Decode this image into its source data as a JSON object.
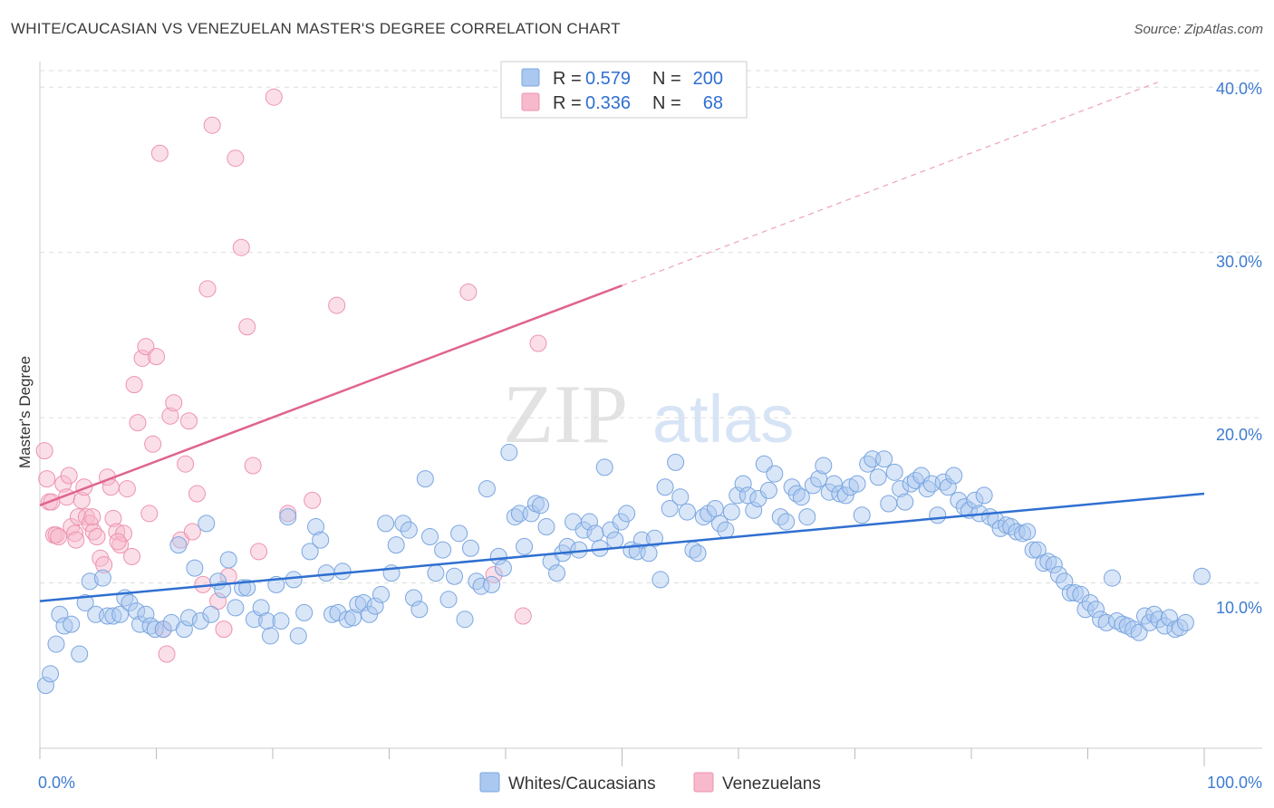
{
  "header": {
    "title": "WHITE/CAUCASIAN VS VENEZUELAN MASTER'S DEGREE CORRELATION CHART",
    "source": "Source: ZipAtlas.com"
  },
  "watermark": {
    "zip": "ZIP",
    "atlas": "atlas"
  },
  "legend": {
    "rows": [
      {
        "r_label": "R =",
        "r_value": "0.579",
        "n_label": "N =",
        "n_value": "200",
        "color": "#aac8f0"
      },
      {
        "r_label": "R =",
        "r_value": "0.336",
        "n_label": "N =",
        "n_value": "68",
        "color": "#f7b9cc"
      }
    ]
  },
  "bottom_legend": [
    "Whites/Caucasians",
    "Venezuelans"
  ],
  "colors": {
    "blue_fill": "#aac8f0",
    "blue_stroke": "#7aa6e0",
    "blue_line": "#2f6fd1",
    "pink_fill": "#f7b9cc",
    "pink_stroke": "#ee93ae",
    "pink_line": "#e0648e",
    "tick_text": "#3d7bd0",
    "grid": "#dddddd"
  },
  "chart_data": {
    "type": "scatter",
    "title": "WHITE/CAUCASIAN VS VENEZUELAN MASTER'S DEGREE CORRELATION CHART",
    "xlabel": "",
    "ylabel": "Master's Degree",
    "xlim": [
      0,
      100
    ],
    "ylim": [
      0,
      41
    ],
    "x_tick_labels": [
      "0.0%",
      "100.0%"
    ],
    "y_ticks": [
      10,
      20,
      30,
      40
    ],
    "y_tick_labels": [
      "10.0%",
      "20.0%",
      "30.0%",
      "40.0%"
    ],
    "grid": true,
    "series": [
      {
        "name": "Whites/Caucasians",
        "R": 0.579,
        "N": 200,
        "trend": {
          "x": [
            0,
            100
          ],
          "y": [
            8.9,
            15.4
          ]
        },
        "points": [
          [
            0.5,
            3.8
          ],
          [
            0.9,
            4.5
          ],
          [
            1.4,
            6.3
          ],
          [
            1.7,
            8.1
          ],
          [
            2.1,
            7.4
          ],
          [
            2.7,
            7.5
          ],
          [
            3.4,
            5.7
          ],
          [
            3.9,
            8.8
          ],
          [
            4.3,
            10.1
          ],
          [
            4.8,
            8.1
          ],
          [
            5.4,
            10.3
          ],
          [
            5.8,
            8.0
          ],
          [
            6.3,
            8.0
          ],
          [
            6.9,
            8.1
          ],
          [
            7.3,
            9.1
          ],
          [
            7.7,
            8.8
          ],
          [
            8.3,
            8.3
          ],
          [
            8.6,
            7.5
          ],
          [
            9.1,
            8.1
          ],
          [
            9.5,
            7.4
          ],
          [
            9.9,
            7.2
          ],
          [
            10.6,
            7.2
          ],
          [
            11.3,
            7.6
          ],
          [
            11.9,
            12.3
          ],
          [
            12.4,
            7.2
          ],
          [
            12.8,
            7.9
          ],
          [
            13.3,
            10.9
          ],
          [
            13.8,
            7.7
          ],
          [
            14.3,
            13.6
          ],
          [
            14.7,
            8.1
          ],
          [
            15.3,
            10.1
          ],
          [
            15.7,
            9.6
          ],
          [
            16.2,
            11.4
          ],
          [
            16.8,
            8.5
          ],
          [
            17.4,
            9.7
          ],
          [
            17.8,
            9.7
          ],
          [
            18.4,
            7.8
          ],
          [
            19.0,
            8.5
          ],
          [
            19.5,
            7.7
          ],
          [
            19.8,
            6.8
          ],
          [
            20.3,
            9.9
          ],
          [
            20.7,
            7.7
          ],
          [
            21.3,
            14.0
          ],
          [
            21.8,
            10.2
          ],
          [
            22.2,
            6.8
          ],
          [
            22.7,
            8.2
          ],
          [
            23.2,
            11.9
          ],
          [
            23.7,
            13.4
          ],
          [
            24.1,
            12.6
          ],
          [
            24.6,
            10.6
          ],
          [
            25.1,
            8.1
          ],
          [
            25.6,
            8.2
          ],
          [
            26.0,
            10.7
          ],
          [
            26.4,
            7.8
          ],
          [
            26.9,
            7.9
          ],
          [
            27.3,
            8.7
          ],
          [
            27.8,
            8.8
          ],
          [
            28.3,
            8.1
          ],
          [
            28.8,
            8.6
          ],
          [
            29.3,
            9.3
          ],
          [
            29.7,
            13.6
          ],
          [
            30.2,
            10.6
          ],
          [
            30.6,
            12.3
          ],
          [
            31.2,
            13.6
          ],
          [
            31.7,
            13.2
          ],
          [
            32.1,
            9.1
          ],
          [
            32.6,
            8.4
          ],
          [
            33.1,
            16.3
          ],
          [
            33.5,
            12.8
          ],
          [
            34.0,
            10.6
          ],
          [
            34.6,
            12.0
          ],
          [
            35.1,
            9.0
          ],
          [
            35.6,
            10.4
          ],
          [
            36.0,
            13.0
          ],
          [
            36.5,
            7.8
          ],
          [
            37.0,
            12.1
          ],
          [
            37.5,
            10.1
          ],
          [
            37.9,
            9.8
          ],
          [
            38.4,
            15.7
          ],
          [
            38.8,
            9.9
          ],
          [
            39.4,
            11.6
          ],
          [
            39.8,
            10.9
          ],
          [
            40.3,
            17.9
          ],
          [
            40.8,
            14.0
          ],
          [
            41.2,
            14.2
          ],
          [
            41.6,
            12.2
          ],
          [
            42.2,
            14.2
          ],
          [
            42.6,
            14.8
          ],
          [
            43.0,
            14.7
          ],
          [
            43.5,
            13.4
          ],
          [
            43.9,
            11.3
          ],
          [
            44.4,
            10.6
          ],
          [
            44.9,
            11.8
          ],
          [
            45.3,
            12.2
          ],
          [
            45.8,
            13.7
          ],
          [
            46.3,
            12.0
          ],
          [
            46.7,
            13.2
          ],
          [
            47.2,
            13.7
          ],
          [
            47.7,
            13.0
          ],
          [
            48.1,
            12.1
          ],
          [
            48.5,
            17.0
          ],
          [
            49.0,
            13.2
          ],
          [
            49.4,
            12.6
          ],
          [
            49.9,
            13.7
          ],
          [
            50.4,
            14.2
          ],
          [
            50.8,
            12.0
          ],
          [
            51.3,
            11.9
          ],
          [
            51.7,
            12.6
          ],
          [
            52.3,
            11.8
          ],
          [
            52.8,
            12.7
          ],
          [
            53.3,
            10.2
          ],
          [
            53.7,
            15.8
          ],
          [
            54.1,
            14.5
          ],
          [
            54.6,
            17.3
          ],
          [
            55.0,
            15.2
          ],
          [
            55.6,
            14.3
          ],
          [
            56.1,
            12.0
          ],
          [
            56.5,
            11.8
          ],
          [
            57.0,
            14.0
          ],
          [
            57.4,
            14.2
          ],
          [
            58.0,
            14.5
          ],
          [
            58.4,
            13.6
          ],
          [
            58.9,
            13.2
          ],
          [
            59.4,
            14.3
          ],
          [
            59.9,
            15.3
          ],
          [
            60.4,
            16.0
          ],
          [
            60.8,
            15.3
          ],
          [
            61.3,
            14.4
          ],
          [
            61.7,
            15.1
          ],
          [
            62.2,
            17.2
          ],
          [
            62.6,
            15.6
          ],
          [
            63.1,
            16.6
          ],
          [
            63.6,
            14.0
          ],
          [
            64.1,
            13.7
          ],
          [
            64.6,
            15.8
          ],
          [
            65.0,
            15.4
          ],
          [
            65.4,
            15.2
          ],
          [
            65.9,
            14.0
          ],
          [
            66.4,
            15.9
          ],
          [
            66.9,
            16.3
          ],
          [
            67.3,
            17.1
          ],
          [
            67.8,
            15.5
          ],
          [
            68.2,
            16.0
          ],
          [
            68.7,
            15.4
          ],
          [
            69.2,
            15.3
          ],
          [
            69.6,
            15.8
          ],
          [
            70.2,
            16.0
          ],
          [
            70.6,
            14.1
          ],
          [
            71.1,
            17.2
          ],
          [
            71.5,
            17.5
          ],
          [
            72.0,
            16.4
          ],
          [
            72.5,
            17.5
          ],
          [
            72.9,
            14.8
          ],
          [
            73.4,
            16.7
          ],
          [
            73.9,
            15.7
          ],
          [
            74.3,
            14.9
          ],
          [
            74.8,
            16.0
          ],
          [
            75.2,
            16.2
          ],
          [
            75.7,
            16.5
          ],
          [
            76.2,
            15.7
          ],
          [
            76.6,
            16.0
          ],
          [
            77.1,
            14.1
          ],
          [
            77.6,
            16.1
          ],
          [
            78.0,
            15.8
          ],
          [
            78.5,
            16.5
          ],
          [
            78.9,
            15.0
          ],
          [
            79.4,
            14.6
          ],
          [
            79.8,
            14.4
          ],
          [
            80.3,
            15.0
          ],
          [
            80.7,
            14.2
          ],
          [
            81.1,
            15.3
          ],
          [
            81.6,
            14.0
          ],
          [
            82.1,
            13.8
          ],
          [
            82.5,
            13.3
          ],
          [
            83.0,
            13.5
          ],
          [
            83.4,
            13.4
          ],
          [
            83.9,
            13.1
          ],
          [
            84.4,
            13.0
          ],
          [
            84.8,
            13.1
          ],
          [
            85.3,
            12.0
          ],
          [
            85.7,
            12.0
          ],
          [
            86.2,
            11.2
          ],
          [
            86.6,
            11.3
          ],
          [
            87.1,
            11.1
          ],
          [
            87.5,
            10.5
          ],
          [
            88.0,
            10.1
          ],
          [
            88.5,
            9.4
          ],
          [
            88.9,
            9.4
          ],
          [
            89.4,
            9.3
          ],
          [
            89.8,
            8.4
          ],
          [
            90.2,
            8.8
          ],
          [
            90.7,
            8.4
          ],
          [
            91.1,
            7.8
          ],
          [
            91.6,
            7.6
          ],
          [
            92.1,
            10.3
          ],
          [
            92.5,
            7.7
          ],
          [
            93.0,
            7.5
          ],
          [
            93.4,
            7.4
          ],
          [
            93.9,
            7.2
          ],
          [
            94.4,
            7.0
          ],
          [
            94.9,
            8.0
          ],
          [
            95.3,
            7.6
          ],
          [
            95.7,
            8.1
          ],
          [
            96.1,
            7.8
          ],
          [
            96.6,
            7.4
          ],
          [
            97.0,
            7.9
          ],
          [
            97.5,
            7.2
          ],
          [
            97.9,
            7.3
          ],
          [
            98.4,
            7.6
          ],
          [
            99.8,
            10.4
          ]
        ]
      },
      {
        "name": "Venezuelans",
        "R": 0.336,
        "N": 68,
        "trend": {
          "x": [
            0,
            50
          ],
          "y": [
            14.7,
            28.0
          ]
        },
        "trend_dashed_extension": {
          "x": [
            50,
            96
          ],
          "y": [
            28.0,
            40.3
          ]
        },
        "points": [
          [
            0.4,
            18.0
          ],
          [
            0.6,
            16.3
          ],
          [
            0.8,
            14.9
          ],
          [
            1.0,
            14.9
          ],
          [
            1.2,
            12.9
          ],
          [
            1.4,
            12.9
          ],
          [
            1.6,
            12.8
          ],
          [
            2.0,
            16.0
          ],
          [
            2.3,
            15.2
          ],
          [
            2.7,
            13.4
          ],
          [
            3.0,
            13.0
          ],
          [
            3.3,
            14.0
          ],
          [
            3.6,
            15.0
          ],
          [
            3.8,
            15.8
          ],
          [
            4.0,
            14.0
          ],
          [
            4.3,
            13.6
          ],
          [
            4.6,
            13.1
          ],
          [
            4.9,
            12.8
          ],
          [
            5.2,
            11.5
          ],
          [
            5.5,
            11.1
          ],
          [
            5.8,
            16.4
          ],
          [
            6.1,
            15.8
          ],
          [
            6.3,
            13.9
          ],
          [
            6.6,
            13.1
          ],
          [
            6.9,
            12.3
          ],
          [
            7.2,
            13.0
          ],
          [
            7.5,
            15.7
          ],
          [
            7.9,
            11.6
          ],
          [
            8.1,
            22.0
          ],
          [
            8.4,
            19.7
          ],
          [
            8.8,
            23.6
          ],
          [
            9.1,
            24.3
          ],
          [
            9.4,
            14.2
          ],
          [
            9.7,
            18.4
          ],
          [
            10.0,
            23.7
          ],
          [
            10.3,
            36.0
          ],
          [
            10.6,
            7.2
          ],
          [
            10.9,
            5.7
          ],
          [
            11.2,
            20.1
          ],
          [
            11.5,
            20.9
          ],
          [
            12.1,
            12.6
          ],
          [
            12.5,
            17.2
          ],
          [
            12.8,
            19.8
          ],
          [
            13.1,
            13.1
          ],
          [
            13.5,
            15.4
          ],
          [
            14.0,
            9.9
          ],
          [
            14.4,
            27.8
          ],
          [
            14.8,
            37.7
          ],
          [
            15.3,
            8.9
          ],
          [
            15.8,
            7.2
          ],
          [
            16.2,
            10.4
          ],
          [
            16.8,
            35.7
          ],
          [
            17.3,
            30.3
          ],
          [
            17.8,
            25.5
          ],
          [
            18.3,
            17.1
          ],
          [
            18.8,
            11.9
          ],
          [
            20.1,
            39.4
          ],
          [
            21.3,
            14.2
          ],
          [
            23.4,
            15.0
          ],
          [
            25.5,
            26.8
          ],
          [
            36.8,
            27.6
          ],
          [
            39.0,
            10.5
          ],
          [
            41.5,
            8.0
          ],
          [
            42.8,
            24.5
          ],
          [
            4.5,
            14.0
          ],
          [
            2.5,
            16.5
          ],
          [
            3.1,
            12.6
          ],
          [
            6.7,
            12.5
          ]
        ]
      }
    ]
  }
}
